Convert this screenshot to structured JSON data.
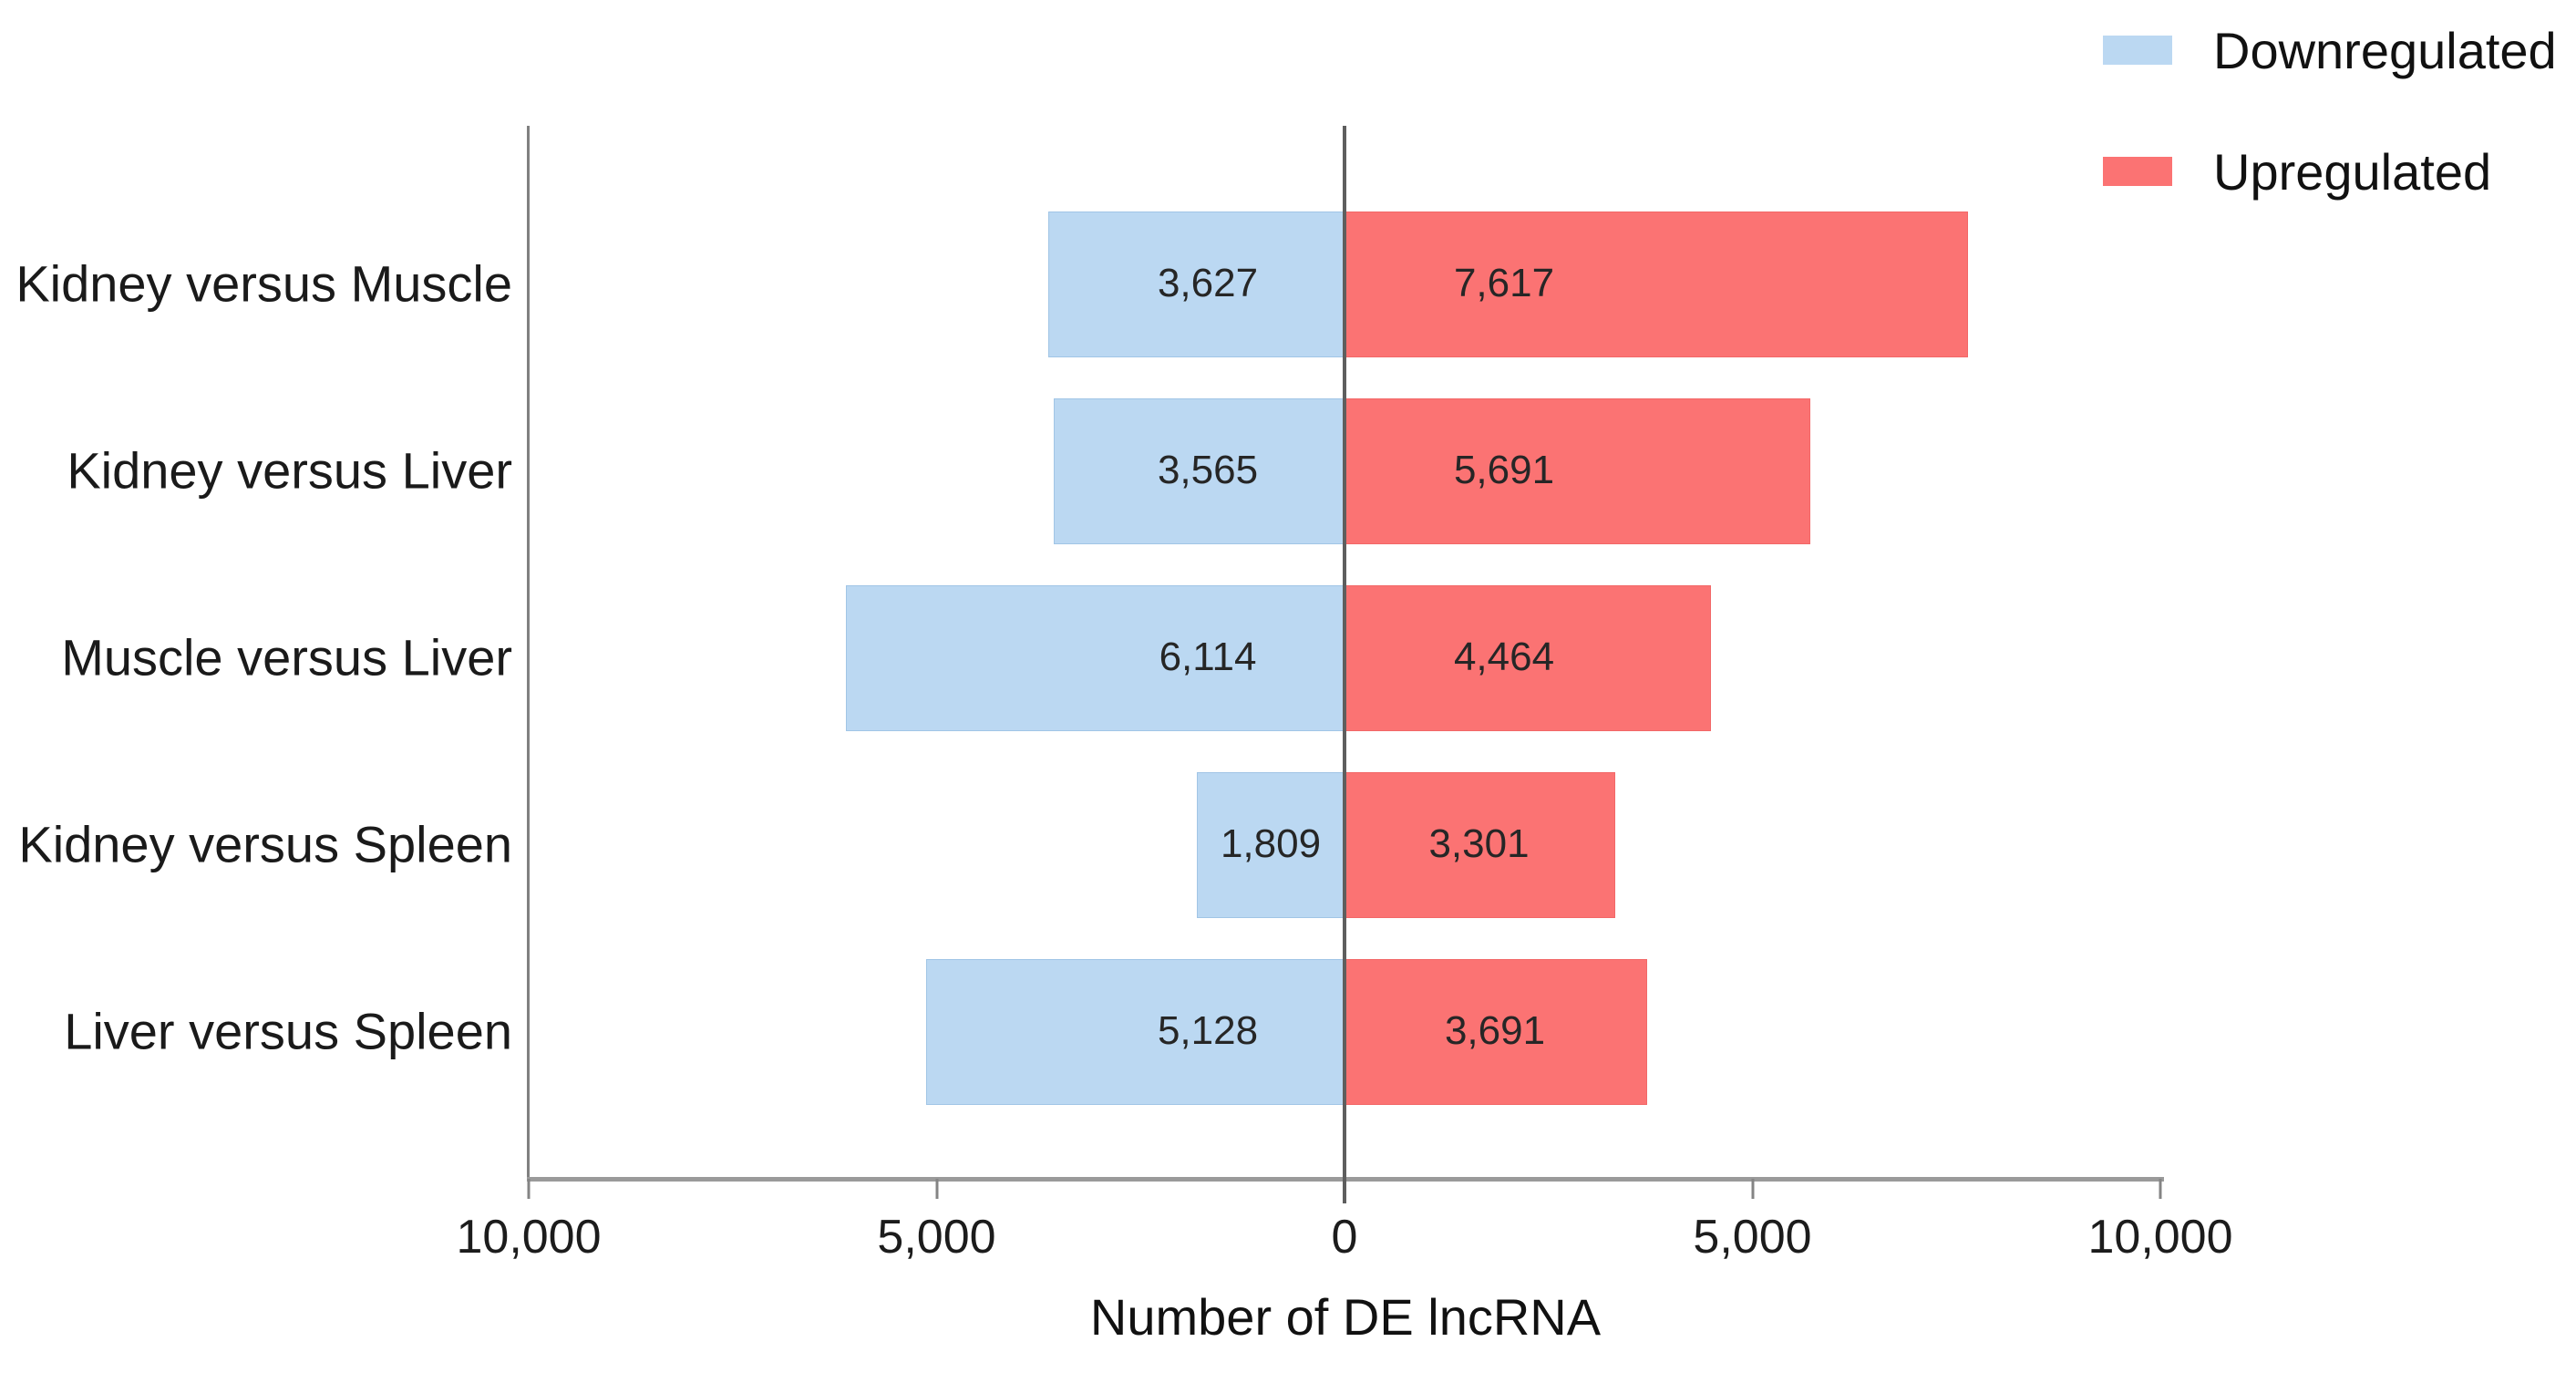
{
  "chart_data": {
    "type": "bar",
    "orientation": "horizontal-diverging",
    "title": "",
    "xlabel": "Number of DE lncRNA",
    "ylabel": "",
    "xlim": [
      -10000,
      10000
    ],
    "grid": false,
    "legend_position": "top-right",
    "x_tick_values": [
      -10000,
      -5000,
      0,
      5000,
      10000
    ],
    "x_tick_labels": [
      "10,000",
      "5,000",
      "0",
      "5,000",
      "10,000"
    ],
    "categories": [
      "Kidney versus Muscle",
      "Kidney versus Liver",
      "Muscle versus Liver",
      "Kidney versus Spleen",
      "Liver versus Spleen"
    ],
    "series": [
      {
        "name": "Downregulated",
        "direction": "left",
        "color": "#BBD8F2",
        "values": [
          3627,
          3565,
          6114,
          1809,
          5128
        ],
        "labels": [
          "3,627",
          "3,565",
          "6,114",
          "1,809",
          "5,128"
        ]
      },
      {
        "name": "Upregulated",
        "direction": "right",
        "color": "#FB7373",
        "values": [
          7617,
          5691,
          4464,
          3301,
          3691
        ],
        "labels": [
          "7,617",
          "5,691",
          "4,464",
          "3,301",
          "3,691"
        ]
      }
    ],
    "colors": {
      "downregulated": "#BBD8F2",
      "upregulated": "#FB7373",
      "axis_line": "#9a9a9a",
      "zero_line": "#5e5e5e",
      "text": "#1a1a1a"
    }
  }
}
